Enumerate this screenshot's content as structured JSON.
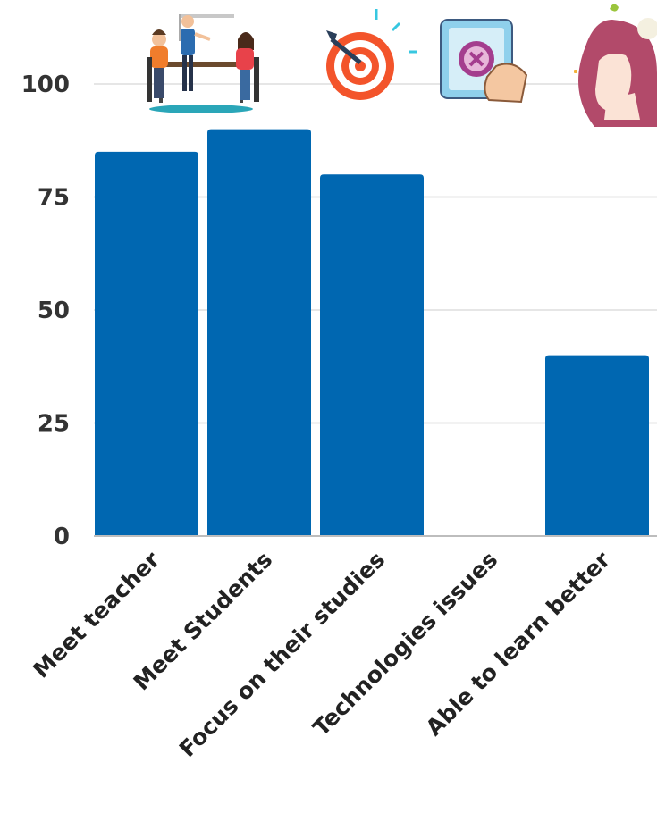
{
  "chart_data": {
    "type": "bar",
    "categories": [
      "Meet teacher",
      "Meet Students",
      "Focus on their studies",
      "Technologies issues",
      "Able to learn  better"
    ],
    "values": [
      85,
      90,
      80,
      0,
      40
    ],
    "ylim": [
      0,
      100
    ],
    "yticks": [
      0,
      25,
      50,
      75,
      100
    ],
    "title": "",
    "xlabel": "",
    "ylabel": "",
    "grid": true,
    "bar_color": "#0067b1",
    "grid_color": "#e6e6e6",
    "icons": [
      "meeting-people-icon",
      "target-arrow-icon",
      "tablet-cancel-icon",
      "thinking-woman-icon"
    ]
  }
}
